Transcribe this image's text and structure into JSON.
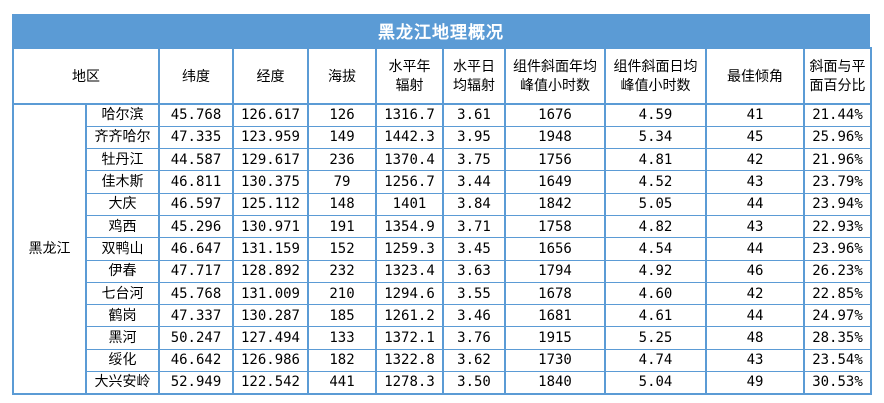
{
  "title": "黑龙江地理概况",
  "colors": {
    "accent_blue": "#5B9BD5",
    "title_text": "#FFFFFF",
    "cell_text": "#000000",
    "grid_border": "#5B9BD5"
  },
  "table": {
    "region_label": "黑龙江",
    "headers": [
      "地区",
      "纬度",
      "经度",
      "海拔",
      "水平年\n辐射",
      "水平日\n均辐射",
      "组件斜面年均\n峰值小时数",
      "组件斜面日均\n峰值小时数",
      "最佳倾角",
      "斜面与平\n面百分比"
    ],
    "rows": [
      {
        "city": "哈尔滨",
        "lat": "45.768",
        "lon": "126.617",
        "alt": "126",
        "annual": "1316.7",
        "daily": "3.61",
        "tilt_annual": "1676",
        "tilt_daily": "4.59",
        "best_angle": "41",
        "pct": "21.44%"
      },
      {
        "city": "齐齐哈尔",
        "lat": "47.335",
        "lon": "123.959",
        "alt": "149",
        "annual": "1442.3",
        "daily": "3.95",
        "tilt_annual": "1948",
        "tilt_daily": "5.34",
        "best_angle": "45",
        "pct": "25.96%"
      },
      {
        "city": "牡丹江",
        "lat": "44.587",
        "lon": "129.617",
        "alt": "236",
        "annual": "1370.4",
        "daily": "3.75",
        "tilt_annual": "1756",
        "tilt_daily": "4.81",
        "best_angle": "42",
        "pct": "21.96%"
      },
      {
        "city": "佳木斯",
        "lat": "46.811",
        "lon": "130.375",
        "alt": "79",
        "annual": "1256.7",
        "daily": "3.44",
        "tilt_annual": "1649",
        "tilt_daily": "4.52",
        "best_angle": "43",
        "pct": "23.79%"
      },
      {
        "city": "大庆",
        "lat": "46.597",
        "lon": "125.112",
        "alt": "148",
        "annual": "1401",
        "daily": "3.84",
        "tilt_annual": "1842",
        "tilt_daily": "5.05",
        "best_angle": "44",
        "pct": "23.94%"
      },
      {
        "city": "鸡西",
        "lat": "45.296",
        "lon": "130.971",
        "alt": "191",
        "annual": "1354.9",
        "daily": "3.71",
        "tilt_annual": "1758",
        "tilt_daily": "4.82",
        "best_angle": "43",
        "pct": "22.93%"
      },
      {
        "city": "双鸭山",
        "lat": "46.647",
        "lon": "131.159",
        "alt": "152",
        "annual": "1259.3",
        "daily": "3.45",
        "tilt_annual": "1656",
        "tilt_daily": "4.54",
        "best_angle": "44",
        "pct": "23.96%"
      },
      {
        "city": "伊春",
        "lat": "47.717",
        "lon": "128.892",
        "alt": "232",
        "annual": "1323.4",
        "daily": "3.63",
        "tilt_annual": "1794",
        "tilt_daily": "4.92",
        "best_angle": "46",
        "pct": "26.23%"
      },
      {
        "city": "七台河",
        "lat": "45.768",
        "lon": "131.009",
        "alt": "210",
        "annual": "1294.6",
        "daily": "3.55",
        "tilt_annual": "1678",
        "tilt_daily": "4.60",
        "best_angle": "42",
        "pct": "22.85%"
      },
      {
        "city": "鹤岗",
        "lat": "47.337",
        "lon": "130.287",
        "alt": "185",
        "annual": "1261.2",
        "daily": "3.46",
        "tilt_annual": "1681",
        "tilt_daily": "4.61",
        "best_angle": "44",
        "pct": "24.97%"
      },
      {
        "city": "黑河",
        "lat": "50.247",
        "lon": "127.494",
        "alt": "133",
        "annual": "1372.1",
        "daily": "3.76",
        "tilt_annual": "1915",
        "tilt_daily": "5.25",
        "best_angle": "48",
        "pct": "28.35%"
      },
      {
        "city": "绥化",
        "lat": "46.642",
        "lon": "126.986",
        "alt": "182",
        "annual": "1322.8",
        "daily": "3.62",
        "tilt_annual": "1730",
        "tilt_daily": "4.74",
        "best_angle": "43",
        "pct": "23.54%"
      },
      {
        "city": "大兴安岭",
        "lat": "52.949",
        "lon": "122.542",
        "alt": "441",
        "annual": "1278.3",
        "daily": "3.50",
        "tilt_annual": "1840",
        "tilt_daily": "5.04",
        "best_angle": "49",
        "pct": "30.53%"
      }
    ]
  }
}
